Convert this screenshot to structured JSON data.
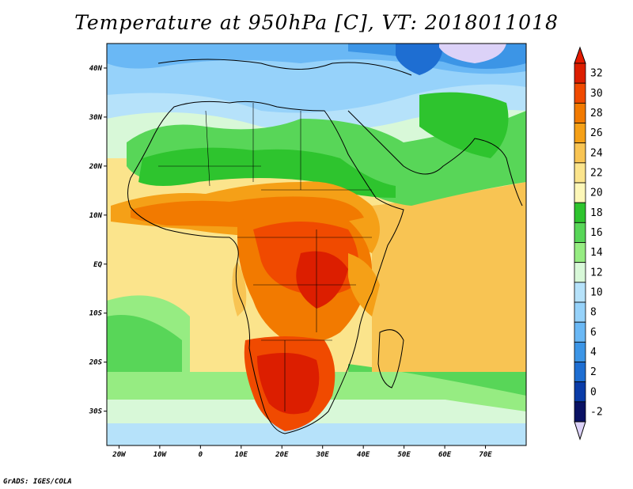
{
  "title": "Temperature at 950hPa [C], VT: 2018011018",
  "footer": "GrADS: IGES/COLA",
  "map": {
    "lon_range": [
      -23,
      80
    ],
    "lat_range": [
      -37,
      45
    ],
    "x_ticks": [
      "20W",
      "10W",
      "0",
      "10E",
      "20E",
      "30E",
      "40E",
      "50E",
      "60E",
      "70E"
    ],
    "y_ticks": [
      "40N",
      "30N",
      "20N",
      "10N",
      "EQ",
      "10S",
      "20S",
      "30S"
    ],
    "variable": "Temperature",
    "level": "950hPa",
    "units": "C",
    "valid_time": "2018011018"
  },
  "colorbar": {
    "labels": [
      "32",
      "30",
      "28",
      "26",
      "24",
      "22",
      "20",
      "18",
      "16",
      "14",
      "12",
      "10",
      "8",
      "6",
      "4",
      "2",
      "0",
      "-2"
    ],
    "colors": [
      "#dc1e00",
      "#f04a00",
      "#f27a00",
      "#f5a017",
      "#f8c453",
      "#fbe48c",
      "#fdf7b8",
      "#2ec42e",
      "#58d658",
      "#96ec82",
      "#d8f8d8",
      "#b6e2fa",
      "#96d2fa",
      "#6ab8f5",
      "#3c95e6",
      "#1e6ed2",
      "#0a3ca8",
      "#0a1264"
    ],
    "top_color": "#e41a00",
    "bottom_color": "#dcd2f8"
  }
}
